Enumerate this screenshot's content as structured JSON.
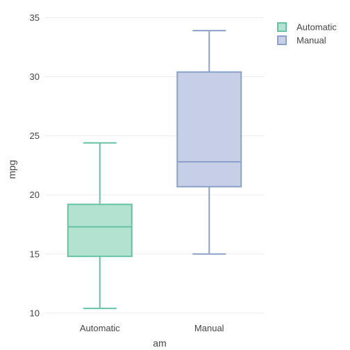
{
  "chart_data": {
    "type": "box",
    "xlabel": "am",
    "ylabel": "mpg",
    "ylim": [
      9.7,
      35.2
    ],
    "yticks": [
      10,
      15,
      20,
      25,
      30,
      35
    ],
    "grid": true,
    "legend_position": "top-right",
    "categories": [
      "Automatic",
      "Manual"
    ],
    "series": [
      {
        "name": "Automatic",
        "min": 10.4,
        "q1": 14.8,
        "median": 17.3,
        "q3": 19.2,
        "max": 24.4,
        "color": "#66c2a5",
        "fill": "#b3e2d1"
      },
      {
        "name": "Manual",
        "min": 15.0,
        "q1": 20.7,
        "median": 22.8,
        "q3": 30.4,
        "max": 33.9,
        "color": "#8da0cb",
        "fill": "#c6cfe5"
      }
    ]
  }
}
